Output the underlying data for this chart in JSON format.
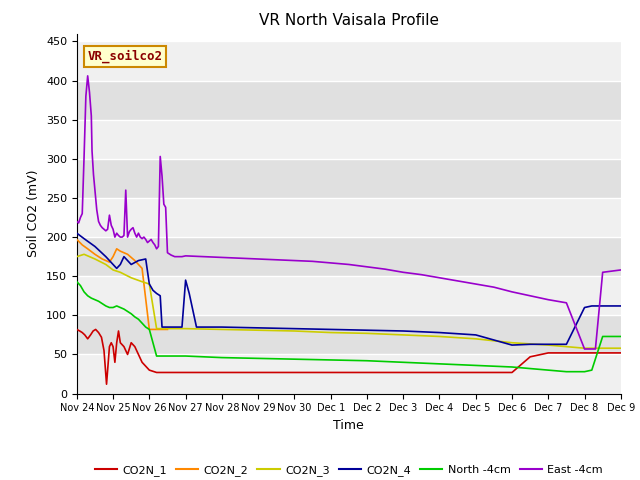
{
  "title": "VR North Vaisala Profile",
  "xlabel": "Time",
  "ylabel": "Soil CO2 (mV)",
  "ylim": [
    0,
    460
  ],
  "yticks": [
    0,
    50,
    100,
    150,
    200,
    250,
    300,
    350,
    400,
    450
  ],
  "watermark": "VR_soilco2",
  "x_labels": [
    "Nov 24",
    "Nov 25",
    "Nov 26",
    "Nov 27",
    "Nov 28",
    "Nov 29",
    "Nov 30",
    "Dec 1",
    "Dec 2",
    "Dec 3",
    "Dec 4",
    "Dec 5",
    "Dec 6",
    "Dec 7",
    "Dec 8",
    "Dec 9"
  ],
  "band_colors": [
    "#f0f0f0",
    "#e0e0e0"
  ],
  "series": {
    "CO2N_1": {
      "color": "#cc0000",
      "x": [
        0,
        0.08,
        0.15,
        0.22,
        0.3,
        0.38,
        0.45,
        0.52,
        0.6,
        0.68,
        0.75,
        0.82,
        0.9,
        0.95,
        1.0,
        1.05,
        1.1,
        1.15,
        1.2,
        1.3,
        1.4,
        1.5,
        1.6,
        1.7,
        1.8,
        1.9,
        2.0,
        2.2,
        2.5,
        3.0,
        3.5,
        4.0,
        5.0,
        6.0,
        7.0,
        8.0,
        9.0,
        10.0,
        11.0,
        12.0,
        12.5,
        13.0,
        13.5,
        14.0,
        14.5,
        15.0
      ],
      "y": [
        82,
        80,
        78,
        75,
        70,
        75,
        80,
        82,
        78,
        72,
        55,
        12,
        60,
        65,
        60,
        40,
        65,
        80,
        65,
        60,
        50,
        65,
        60,
        50,
        40,
        35,
        30,
        27,
        27,
        27,
        27,
        27,
        27,
        27,
        27,
        27,
        27,
        27,
        27,
        27,
        47,
        52,
        52,
        52,
        52,
        52
      ]
    },
    "CO2N_2": {
      "color": "#ff8800",
      "x": [
        0,
        0.15,
        0.3,
        0.5,
        0.7,
        0.9,
        1.0,
        1.1,
        1.2,
        1.4,
        1.6,
        1.8,
        2.0,
        2.2,
        2.5
      ],
      "y": [
        197,
        190,
        185,
        178,
        172,
        168,
        175,
        185,
        182,
        178,
        170,
        160,
        82,
        82,
        82
      ]
    },
    "CO2N_3": {
      "color": "#cccc00",
      "x": [
        0,
        0.2,
        0.5,
        0.8,
        1.0,
        1.2,
        1.5,
        1.8,
        2.0,
        2.2,
        2.5,
        3.0,
        4.0,
        5.0,
        6.0,
        7.0,
        8.0,
        9.0,
        10.0,
        11.0,
        12.0,
        13.0,
        13.5,
        14.0,
        14.5,
        15.0
      ],
      "y": [
        175,
        178,
        172,
        165,
        158,
        155,
        148,
        143,
        140,
        83,
        83,
        83,
        82,
        81,
        80,
        78,
        77,
        75,
        73,
        70,
        65,
        62,
        60,
        58,
        58,
        58
      ]
    },
    "CO2N_4": {
      "color": "#000099",
      "x": [
        0,
        0.2,
        0.5,
        0.8,
        1.0,
        1.1,
        1.2,
        1.3,
        1.5,
        1.7,
        1.9,
        2.0,
        2.1,
        2.2,
        2.3,
        2.35,
        2.5,
        2.7,
        2.9,
        3.0,
        3.1,
        3.3,
        3.5,
        4.0,
        5.0,
        6.0,
        7.0,
        8.0,
        9.0,
        10.0,
        11.0,
        12.0,
        12.5,
        13.0,
        13.5,
        14.0,
        14.2,
        14.5,
        15.0
      ],
      "y": [
        205,
        198,
        188,
        175,
        165,
        160,
        165,
        175,
        165,
        170,
        172,
        140,
        132,
        128,
        125,
        85,
        85,
        85,
        85,
        145,
        128,
        85,
        85,
        85,
        84,
        83,
        82,
        81,
        80,
        78,
        75,
        62,
        63,
        63,
        63,
        110,
        112,
        112,
        112
      ]
    },
    "North -4cm": {
      "color": "#00cc00",
      "x": [
        0,
        0.1,
        0.2,
        0.3,
        0.4,
        0.5,
        0.6,
        0.7,
        0.8,
        0.9,
        1.0,
        1.1,
        1.2,
        1.3,
        1.4,
        1.5,
        1.6,
        1.7,
        1.8,
        1.9,
        2.0,
        2.2,
        2.5,
        3.0,
        3.5,
        4.0,
        5.0,
        6.0,
        7.0,
        8.0,
        9.0,
        10.0,
        11.0,
        12.0,
        13.0,
        13.5,
        14.0,
        14.2,
        14.5,
        15.0
      ],
      "y": [
        143,
        138,
        130,
        125,
        122,
        120,
        118,
        115,
        112,
        110,
        110,
        112,
        110,
        108,
        105,
        102,
        98,
        95,
        90,
        85,
        82,
        48,
        48,
        48,
        47,
        46,
        45,
        44,
        43,
        42,
        40,
        38,
        36,
        34,
        30,
        28,
        28,
        30,
        73,
        73
      ]
    },
    "East -4cm": {
      "color": "#9900cc",
      "x": [
        0,
        0.05,
        0.1,
        0.15,
        0.2,
        0.25,
        0.3,
        0.35,
        0.4,
        0.42,
        0.44,
        0.46,
        0.5,
        0.55,
        0.6,
        0.65,
        0.7,
        0.75,
        0.8,
        0.85,
        0.9,
        0.95,
        1.0,
        1.05,
        1.1,
        1.15,
        1.2,
        1.25,
        1.3,
        1.35,
        1.4,
        1.45,
        1.5,
        1.55,
        1.6,
        1.65,
        1.7,
        1.75,
        1.8,
        1.85,
        1.9,
        1.95,
        2.0,
        2.05,
        2.1,
        2.15,
        2.2,
        2.25,
        2.3,
        2.35,
        2.4,
        2.45,
        2.5,
        2.6,
        2.7,
        2.8,
        2.9,
        3.0,
        3.5,
        4.0,
        4.5,
        5.0,
        5.5,
        6.0,
        6.5,
        7.0,
        7.5,
        8.0,
        8.5,
        9.0,
        9.5,
        10.0,
        10.5,
        11.0,
        11.5,
        12.0,
        12.5,
        13.0,
        13.5,
        14.0,
        14.2,
        14.3,
        14.5,
        15.0
      ],
      "y": [
        220,
        218,
        225,
        230,
        302,
        380,
        406,
        385,
        355,
        310,
        295,
        280,
        260,
        235,
        220,
        215,
        212,
        210,
        208,
        210,
        228,
        215,
        210,
        200,
        205,
        202,
        200,
        200,
        202,
        260,
        200,
        207,
        210,
        212,
        205,
        200,
        205,
        200,
        198,
        200,
        197,
        193,
        195,
        197,
        193,
        190,
        185,
        188,
        303,
        278,
        242,
        238,
        180,
        177,
        175,
        175,
        175,
        176,
        175,
        174,
        173,
        172,
        171,
        170,
        169,
        167,
        165,
        162,
        159,
        155,
        152,
        148,
        144,
        140,
        136,
        130,
        125,
        120,
        116,
        57,
        57,
        57,
        155,
        158
      ]
    }
  }
}
